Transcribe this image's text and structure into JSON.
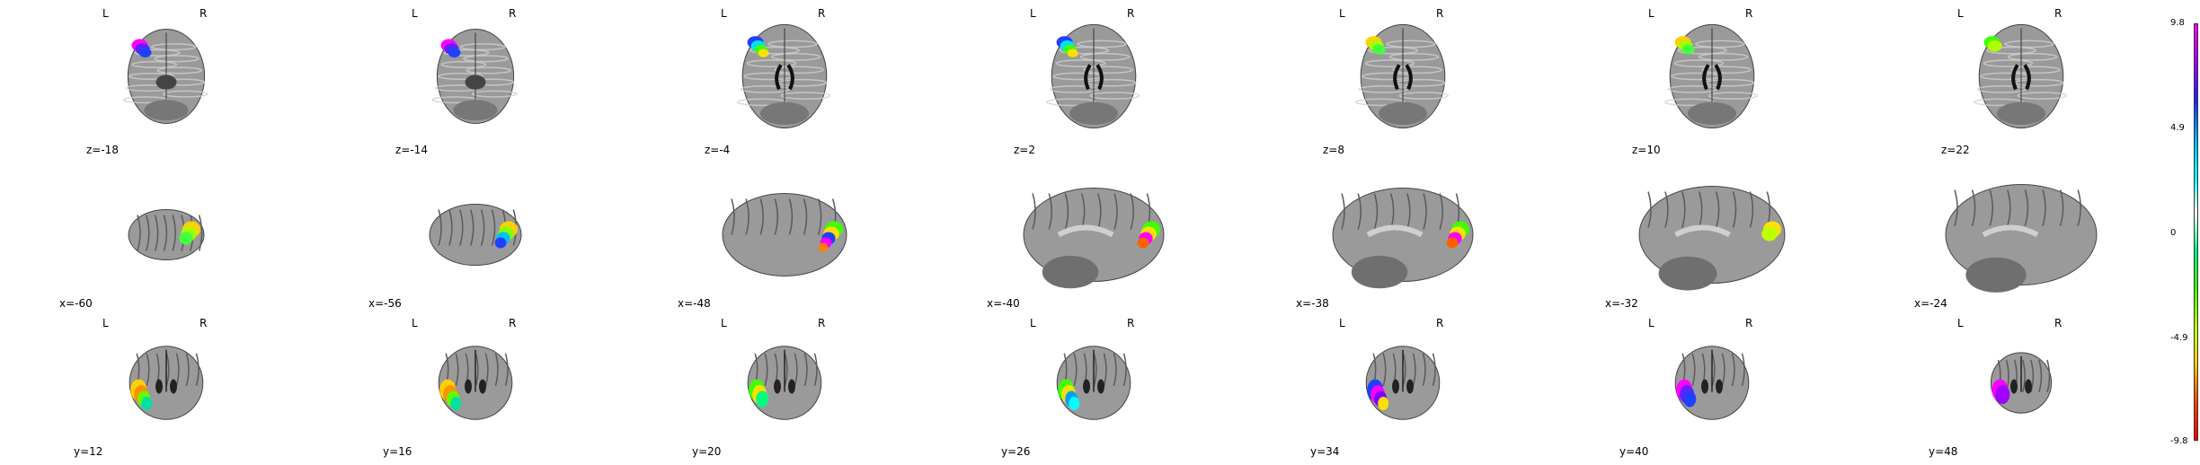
{
  "figure": {
    "rows": [
      {
        "view": "axial",
        "orientation": {
          "left": "L",
          "right": "R"
        },
        "slices": [
          {
            "label": "z=-18",
            "blob": "small-magenta-blue"
          },
          {
            "label": "z=-14",
            "blob": "magenta-blue"
          },
          {
            "label": "z=-4",
            "blob": "blue-green-yellow"
          },
          {
            "label": "z=2",
            "blob": "blue-green-yellow"
          },
          {
            "label": "z=8",
            "blob": "yellow-green"
          },
          {
            "label": "z=10",
            "blob": "yellow-green"
          },
          {
            "label": "z=22",
            "blob": "green"
          }
        ]
      },
      {
        "view": "sagittal",
        "orientation": {
          "left": "",
          "right": ""
        },
        "slices": [
          {
            "label": "x=-60",
            "blob": "yellow-green"
          },
          {
            "label": "x=-56",
            "blob": "yellow-green-blue"
          },
          {
            "label": "x=-48",
            "blob": "green-yellow-blue-magenta"
          },
          {
            "label": "x=-40",
            "blob": "green-yellow-magenta"
          },
          {
            "label": "x=-38",
            "blob": "green-yellow-magenta"
          },
          {
            "label": "x=-32",
            "blob": "yellow-small"
          },
          {
            "label": "x=-24",
            "blob": "none"
          }
        ]
      },
      {
        "view": "coronal",
        "orientation": {
          "left": "L",
          "right": "R"
        },
        "slices": [
          {
            "label": "y=12",
            "blob": "yellow-orange-green"
          },
          {
            "label": "y=16",
            "blob": "yellow-orange-green"
          },
          {
            "label": "y=20",
            "blob": "green-yellow"
          },
          {
            "label": "y=26",
            "blob": "green-yellow-blue"
          },
          {
            "label": "y=34",
            "blob": "blue-magenta"
          },
          {
            "label": "y=40",
            "blob": "magenta-blue"
          },
          {
            "label": "y=48",
            "blob": "magenta-small"
          }
        ]
      }
    ]
  },
  "colorbar": {
    "ticks": [
      "9.8",
      "4.9",
      "0",
      "-4.9",
      "-9.8"
    ],
    "colormap": [
      "#ff00ff",
      "#a000ff",
      "#2020ff",
      "#00b0ff",
      "#00ffff",
      "#ffffff",
      "#00ff80",
      "#40ff00",
      "#c0ff00",
      "#ffcc00",
      "#ff4000",
      "#ff0000"
    ]
  },
  "colors": {
    "brain_dark": "#5a5a5a",
    "brain_mid": "#9a9a9a",
    "brain_light": "#cfcfcf",
    "background": "#ffffff"
  }
}
